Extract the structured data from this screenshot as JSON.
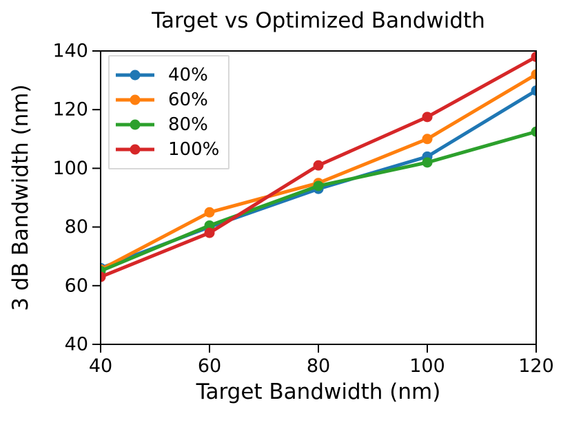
{
  "chart_data": {
    "type": "line",
    "title": "Target vs Optimized Bandwidth",
    "xlabel": "Target Bandwidth (nm)",
    "ylabel": "3 dB Bandwidth (nm)",
    "x": [
      40,
      60,
      80,
      100,
      120
    ],
    "xlim": [
      40,
      120
    ],
    "ylim": [
      40,
      140
    ],
    "xticks": [
      40,
      60,
      80,
      100,
      120
    ],
    "yticks": [
      40,
      60,
      80,
      100,
      120,
      140
    ],
    "grid": false,
    "legend_position": "upper-left",
    "series": [
      {
        "name": "40%",
        "color": "#1f77b4",
        "values": [
          66,
          80,
          93,
          104,
          126.5
        ]
      },
      {
        "name": "60%",
        "color": "#ff7f0e",
        "values": [
          65.5,
          85,
          95,
          110,
          132
        ]
      },
      {
        "name": "80%",
        "color": "#2ca02c",
        "values": [
          65,
          80.5,
          94,
          102,
          112.5
        ]
      },
      {
        "name": "100%",
        "color": "#d62728",
        "values": [
          63,
          78,
          101,
          117.5,
          138
        ]
      }
    ],
    "axis_color": "#000000"
  }
}
